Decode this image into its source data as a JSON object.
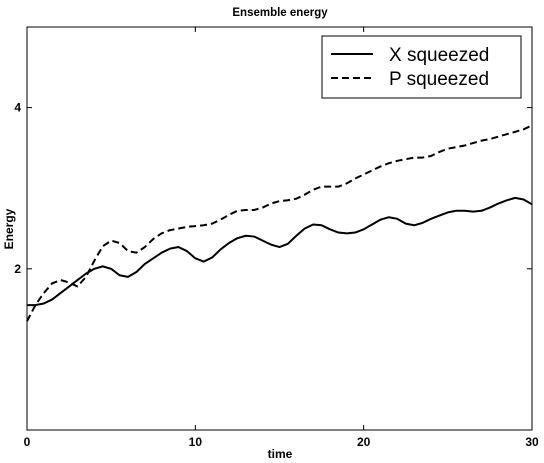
{
  "chart_data": {
    "type": "line",
    "title": "Ensemble energy",
    "xlabel": "time",
    "ylabel": "Energy",
    "xlim": [
      0,
      30
    ],
    "ylim": [
      0,
      5
    ],
    "xticks": [
      0,
      10,
      20,
      30
    ],
    "yticks": [
      2,
      4
    ],
    "grid": false,
    "legend_position": "top-right",
    "series": [
      {
        "name": "X squeezed",
        "style": "solid",
        "color": "#000000",
        "x": [
          0,
          0.5,
          1,
          1.5,
          2,
          2.5,
          3,
          3.5,
          4,
          4.5,
          5,
          5.5,
          6,
          6.5,
          7,
          7.5,
          8,
          8.5,
          9,
          9.5,
          10,
          10.5,
          11,
          11.5,
          12,
          12.5,
          13,
          13.5,
          14,
          14.5,
          15,
          15.5,
          16,
          16.5,
          17,
          17.5,
          18,
          18.5,
          19,
          19.5,
          20,
          20.5,
          21,
          21.5,
          22,
          22.5,
          23,
          23.5,
          24,
          24.5,
          25,
          25.5,
          26,
          26.5,
          27,
          27.5,
          28,
          28.5,
          29,
          29.5,
          30
        ],
        "values": [
          1.55,
          1.55,
          1.57,
          1.62,
          1.7,
          1.78,
          1.86,
          1.94,
          2.0,
          2.03,
          2.0,
          1.92,
          1.9,
          1.96,
          2.06,
          2.13,
          2.2,
          2.25,
          2.27,
          2.22,
          2.13,
          2.09,
          2.14,
          2.24,
          2.32,
          2.38,
          2.41,
          2.4,
          2.35,
          2.3,
          2.27,
          2.31,
          2.41,
          2.5,
          2.55,
          2.54,
          2.49,
          2.45,
          2.44,
          2.45,
          2.49,
          2.55,
          2.61,
          2.64,
          2.62,
          2.56,
          2.54,
          2.57,
          2.62,
          2.66,
          2.7,
          2.72,
          2.72,
          2.71,
          2.72,
          2.76,
          2.81,
          2.85,
          2.88,
          2.86,
          2.8
        ]
      },
      {
        "name": "P squeezed",
        "style": "dashed",
        "color": "#000000",
        "x": [
          0,
          0.5,
          1,
          1.5,
          2,
          2.5,
          3,
          3.5,
          4,
          4.5,
          5,
          5.5,
          6,
          6.5,
          7,
          7.5,
          8,
          8.5,
          9,
          9.5,
          10,
          10.5,
          11,
          11.5,
          12,
          12.5,
          13,
          13.5,
          14,
          14.5,
          15,
          15.5,
          16,
          16.5,
          17,
          17.5,
          18,
          18.5,
          19,
          19.5,
          20,
          20.5,
          21,
          21.5,
          22,
          22.5,
          23,
          23.5,
          24,
          24.5,
          25,
          25.5,
          26,
          26.5,
          27,
          27.5,
          28,
          28.5,
          29,
          29.5,
          30
        ],
        "values": [
          1.35,
          1.55,
          1.7,
          1.82,
          1.86,
          1.83,
          1.78,
          1.9,
          2.1,
          2.28,
          2.35,
          2.32,
          2.22,
          2.2,
          2.27,
          2.37,
          2.44,
          2.48,
          2.5,
          2.52,
          2.53,
          2.54,
          2.56,
          2.61,
          2.67,
          2.72,
          2.73,
          2.73,
          2.76,
          2.81,
          2.84,
          2.85,
          2.87,
          2.92,
          2.98,
          3.02,
          3.02,
          3.02,
          3.06,
          3.12,
          3.17,
          3.22,
          3.27,
          3.31,
          3.34,
          3.36,
          3.38,
          3.38,
          3.4,
          3.45,
          3.49,
          3.51,
          3.53,
          3.56,
          3.59,
          3.61,
          3.64,
          3.67,
          3.7,
          3.73,
          3.78
        ]
      }
    ]
  }
}
